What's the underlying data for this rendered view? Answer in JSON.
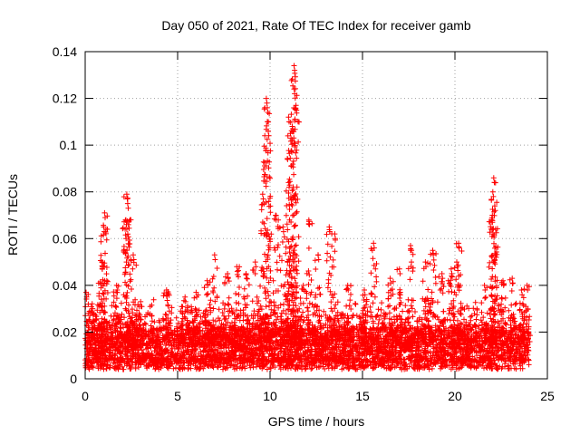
{
  "chart_data": {
    "type": "scatter",
    "title": "Day 050 of 2021, Rate Of TEC Index for receiver gamb",
    "xlabel": "GPS time / hours",
    "ylabel": "ROTI / TECUs",
    "xlim": [
      0,
      25
    ],
    "ylim": [
      0,
      0.14
    ],
    "xticks": [
      0,
      5,
      10,
      15,
      20,
      25
    ],
    "xtick_labels": [
      "0",
      "5",
      "10",
      "15",
      "20",
      "25"
    ],
    "yticks": [
      0,
      0.02,
      0.04,
      0.06,
      0.08,
      0.1,
      0.12,
      0.14
    ],
    "ytick_labels": [
      "0",
      "0.02",
      "0.04",
      "0.06",
      "0.08",
      "0.1",
      "0.12",
      "0.14"
    ],
    "grid": true,
    "marker": "+",
    "color": "#ff0000",
    "x_range_of_data": [
      0,
      24
    ],
    "background_band": {
      "low": 0.007,
      "high": 0.022
    },
    "peaks": [
      {
        "x": 0.05,
        "y": 0.037
      },
      {
        "x": 0.4,
        "y": 0.03
      },
      {
        "x": 0.9,
        "y": 0.05
      },
      {
        "x": 1.0,
        "y": 0.065
      },
      {
        "x": 1.05,
        "y": 0.071
      },
      {
        "x": 1.7,
        "y": 0.04
      },
      {
        "x": 2.2,
        "y": 0.068
      },
      {
        "x": 2.25,
        "y": 0.079
      },
      {
        "x": 2.3,
        "y": 0.075
      },
      {
        "x": 2.6,
        "y": 0.053
      },
      {
        "x": 3.0,
        "y": 0.033
      },
      {
        "x": 4.4,
        "y": 0.038
      },
      {
        "x": 5.4,
        "y": 0.035
      },
      {
        "x": 6.0,
        "y": 0.037
      },
      {
        "x": 6.6,
        "y": 0.042
      },
      {
        "x": 7.0,
        "y": 0.053
      },
      {
        "x": 7.7,
        "y": 0.045
      },
      {
        "x": 8.2,
        "y": 0.048
      },
      {
        "x": 8.7,
        "y": 0.045
      },
      {
        "x": 9.2,
        "y": 0.05
      },
      {
        "x": 9.6,
        "y": 0.079
      },
      {
        "x": 9.8,
        "y": 0.12
      },
      {
        "x": 9.85,
        "y": 0.116
      },
      {
        "x": 9.9,
        "y": 0.106
      },
      {
        "x": 10.3,
        "y": 0.07
      },
      {
        "x": 10.7,
        "y": 0.065
      },
      {
        "x": 11.0,
        "y": 0.112
      },
      {
        "x": 11.1,
        "y": 0.105
      },
      {
        "x": 11.2,
        "y": 0.108
      },
      {
        "x": 11.3,
        "y": 0.124
      },
      {
        "x": 11.3,
        "y": 0.134
      },
      {
        "x": 11.4,
        "y": 0.117
      },
      {
        "x": 11.0,
        "y": 0.084
      },
      {
        "x": 11.8,
        "y": 0.04
      },
      {
        "x": 12.1,
        "y": 0.068
      },
      {
        "x": 12.6,
        "y": 0.053
      },
      {
        "x": 13.2,
        "y": 0.065
      },
      {
        "x": 13.5,
        "y": 0.062
      },
      {
        "x": 14.2,
        "y": 0.04
      },
      {
        "x": 15.1,
        "y": 0.038
      },
      {
        "x": 15.6,
        "y": 0.058
      },
      {
        "x": 16.5,
        "y": 0.043
      },
      {
        "x": 17.0,
        "y": 0.047
      },
      {
        "x": 17.6,
        "y": 0.057
      },
      {
        "x": 18.4,
        "y": 0.05
      },
      {
        "x": 18.8,
        "y": 0.055
      },
      {
        "x": 19.3,
        "y": 0.045
      },
      {
        "x": 19.8,
        "y": 0.047
      },
      {
        "x": 20.1,
        "y": 0.05
      },
      {
        "x": 20.2,
        "y": 0.058
      },
      {
        "x": 21.6,
        "y": 0.04
      },
      {
        "x": 22.0,
        "y": 0.069
      },
      {
        "x": 22.05,
        "y": 0.08
      },
      {
        "x": 22.1,
        "y": 0.086
      },
      {
        "x": 22.15,
        "y": 0.074
      },
      {
        "x": 22.6,
        "y": 0.042
      },
      {
        "x": 23.1,
        "y": 0.043
      },
      {
        "x": 23.6,
        "y": 0.038
      },
      {
        "x": 23.9,
        "y": 0.04
      }
    ]
  }
}
